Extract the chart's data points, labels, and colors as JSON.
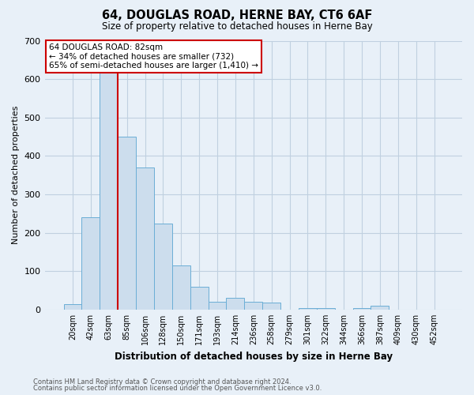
{
  "title": "64, DOUGLAS ROAD, HERNE BAY, CT6 6AF",
  "subtitle": "Size of property relative to detached houses in Herne Bay",
  "xlabel": "Distribution of detached houses by size in Herne Bay",
  "ylabel": "Number of detached properties",
  "footer_line1": "Contains HM Land Registry data © Crown copyright and database right 2024.",
  "footer_line2": "Contains public sector information licensed under the Open Government Licence v3.0.",
  "bin_labels": [
    "20sqm",
    "42sqm",
    "63sqm",
    "85sqm",
    "106sqm",
    "128sqm",
    "150sqm",
    "171sqm",
    "193sqm",
    "214sqm",
    "236sqm",
    "258sqm",
    "279sqm",
    "301sqm",
    "322sqm",
    "344sqm",
    "366sqm",
    "387sqm",
    "409sqm",
    "430sqm",
    "452sqm"
  ],
  "bar_values": [
    15,
    240,
    670,
    450,
    370,
    225,
    115,
    60,
    20,
    30,
    20,
    18,
    0,
    4,
    4,
    0,
    4,
    10,
    0,
    0,
    0
  ],
  "bar_color": "#ccdded",
  "bar_edge_color": "#6baed6",
  "grid_color": "#c0d0e0",
  "bg_color": "#e8f0f8",
  "vline_color": "#cc0000",
  "annotation_text": "64 DOUGLAS ROAD: 82sqm\n← 34% of detached houses are smaller (732)\n65% of semi-detached houses are larger (1,410) →",
  "annotation_box_color": "#ffffff",
  "annotation_box_edge": "#cc0000",
  "ylim": [
    0,
    700
  ],
  "yticks": [
    0,
    100,
    200,
    300,
    400,
    500,
    600,
    700
  ]
}
